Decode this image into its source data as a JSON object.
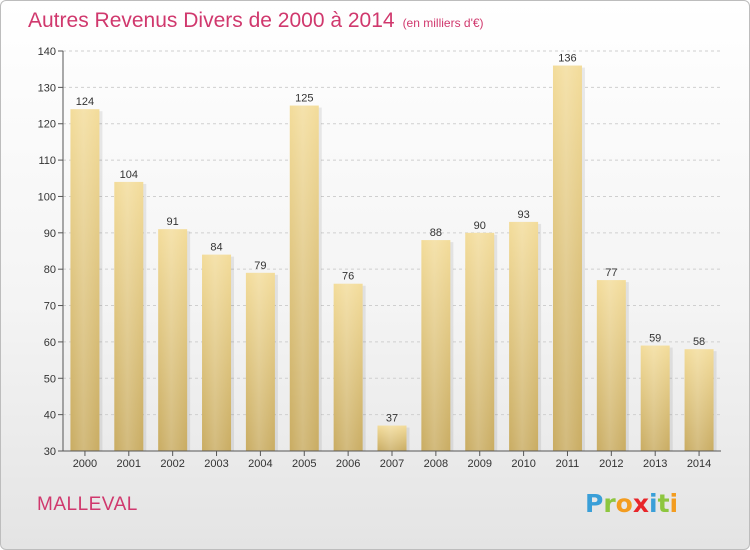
{
  "title": "Autres Revenus Divers de 2000 à 2014",
  "unit": "(en milliers d'€)",
  "town": "MALLEVAL",
  "logo": {
    "letters": [
      "P",
      "r",
      "o",
      "x",
      "i",
      "t",
      "i"
    ],
    "colors": [
      "#3a9fd8",
      "#8dc63f",
      "#f39c1f",
      "#e8262a",
      "#3a9fd8",
      "#8dc63f",
      "#f39c1f"
    ]
  },
  "colors": {
    "bar_top": "#f3dc9a",
    "bar_bottom": "#c9ac62",
    "title": "#d0386d",
    "gridline": "#cfcfcf"
  },
  "chart_data": {
    "type": "bar",
    "title": "Autres Revenus Divers de 2000 à 2014",
    "subtitle": "(en milliers d'€)",
    "categories": [
      "2000",
      "2001",
      "2002",
      "2003",
      "2004",
      "2005",
      "2006",
      "2007",
      "2008",
      "2009",
      "2010",
      "2011",
      "2012",
      "2013",
      "2014"
    ],
    "values": [
      124,
      104,
      91,
      84,
      79,
      125,
      76,
      37,
      88,
      90,
      93,
      136,
      77,
      59,
      58
    ],
    "ylim": [
      30,
      140
    ],
    "yticks": [
      30,
      40,
      50,
      60,
      70,
      80,
      90,
      100,
      110,
      120,
      130,
      140
    ],
    "grid": true,
    "xlabel": "",
    "ylabel": ""
  }
}
